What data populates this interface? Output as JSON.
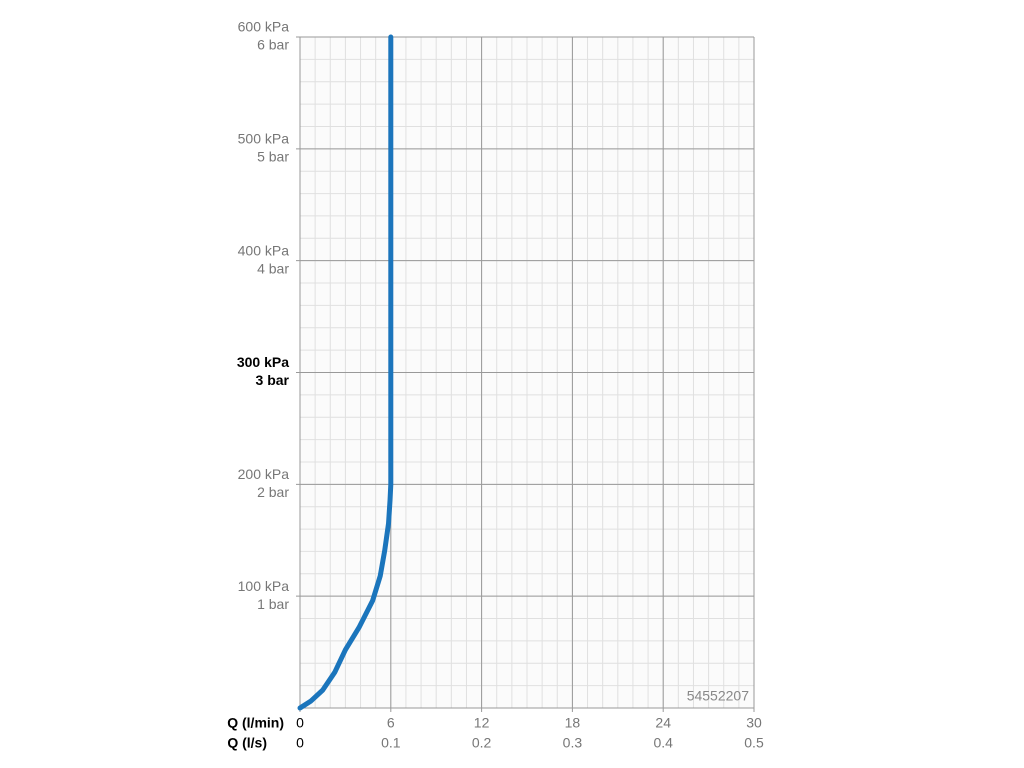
{
  "chart_data": {
    "type": "line",
    "x": [
      0,
      0.7,
      1.5,
      2.3,
      3,
      3.9,
      4.8,
      5.3,
      5.6,
      5.85,
      5.95,
      6,
      6
    ],
    "values": [
      0,
      6,
      16,
      32,
      52,
      72,
      96,
      118,
      141,
      165,
      186,
      200,
      600
    ],
    "color": "#1b75bc",
    "xlim": [
      0,
      30
    ],
    "xticks": [
      0,
      6,
      12,
      18,
      24,
      30
    ],
    "xticks2": [
      0,
      0.1,
      0.2,
      0.3,
      0.4,
      0.5
    ],
    "xlabel": "Q (l/min)",
    "xlabel2": "Q (l/s)",
    "ylim": [
      0,
      600
    ],
    "yticks": [
      {
        "value": 100,
        "label": "100 kPa"
      },
      {
        "value": 200,
        "label": "200 kPa"
      },
      {
        "value": 300,
        "label": "300 kPa"
      },
      {
        "value": 400,
        "label": "400 kPa"
      },
      {
        "value": 500,
        "label": "500 kPa"
      },
      {
        "value": 600,
        "label": "600 kPa"
      }
    ],
    "yticks_bar": [
      "1 bar",
      "2 bar",
      "3 bar",
      "4 bar",
      "5 bar",
      "6 bar"
    ],
    "bold_ytick": 300,
    "grid": true,
    "minor_x_step": 1,
    "minor_y_step": 20,
    "annotation": "54552207"
  }
}
